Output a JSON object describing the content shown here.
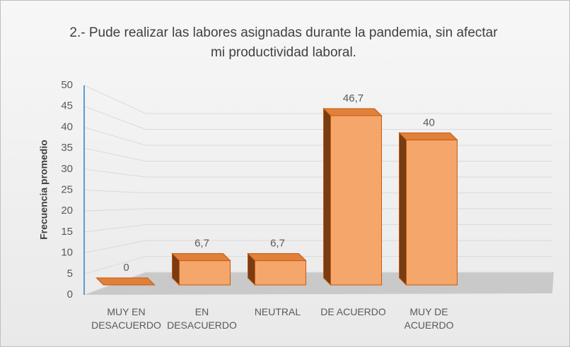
{
  "chart_data": {
    "type": "bar3d",
    "title": "2.- Pude realizar las labores asignadas durante la pandemia, sin afectar mi productividad laboral.",
    "ylabel": "Frecuencia promedio",
    "categories": [
      "MUY EN DESACUERDO",
      "EN DESACUERDO",
      "NEUTRAL",
      "DE ACUERDO",
      "MUY DE ACUERDO"
    ],
    "values": [
      0,
      6.7,
      6.7,
      46.7,
      40
    ],
    "value_labels": [
      "0",
      "6,7",
      "6,7",
      "46,7",
      "40"
    ],
    "color": "#f5a66b",
    "ylim": [
      0,
      50
    ],
    "yticks": [
      0,
      5,
      10,
      15,
      20,
      25,
      30,
      35,
      40,
      45,
      50
    ],
    "grid": true
  }
}
